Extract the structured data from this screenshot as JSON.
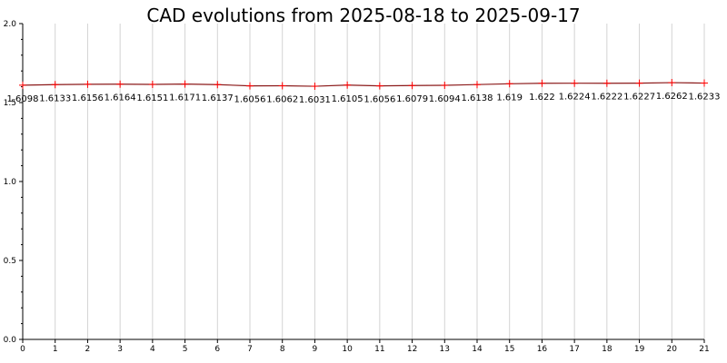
{
  "chart_data": {
    "type": "line",
    "title": "CAD evolutions from 2025-08-18 to 2025-09-17",
    "xlabel": "",
    "ylabel": "",
    "x": [
      0,
      1,
      2,
      3,
      4,
      5,
      6,
      7,
      8,
      9,
      10,
      11,
      12,
      13,
      14,
      15,
      16,
      17,
      18,
      19,
      20,
      21
    ],
    "series": [
      {
        "name": "",
        "values": [
          1.6098,
          1.6133,
          1.6156,
          1.6164,
          1.6151,
          1.6171,
          1.6137,
          1.6056,
          1.6062,
          1.6031,
          1.6105,
          1.6056,
          1.6079,
          1.6094,
          1.6138,
          1.619,
          1.622,
          1.6224,
          1.6222,
          1.6227,
          1.6262,
          1.6233
        ],
        "labels": [
          "1.6098",
          "1.6133",
          "1.6156",
          "1.6164",
          "1.6151",
          "1.6171",
          "1.6137",
          "1.6056",
          "1.6062",
          "1.6031",
          "1.6105",
          "1.6056",
          "1.6079",
          "1.6094",
          "1.6138",
          "1.619",
          "1.622",
          "1.6224",
          "1.6222",
          "1.6227",
          "1.6262",
          "1.6233"
        ]
      }
    ],
    "xlim": [
      0,
      21
    ],
    "ylim": [
      0,
      2
    ],
    "xticks": [
      "0",
      "1",
      "2",
      "3",
      "4",
      "5",
      "6",
      "7",
      "8",
      "9",
      "10",
      "11",
      "12",
      "13",
      "14",
      "15",
      "16",
      "17",
      "18",
      "19",
      "20",
      "21"
    ],
    "yticks": [
      "0.0",
      "0.5",
      "1.0",
      "1.5",
      "2.0"
    ],
    "grid": "vertical",
    "line_color": "#8b1a1a",
    "marker_color": "#ff0000",
    "grid_color": "#d3d3d3"
  }
}
